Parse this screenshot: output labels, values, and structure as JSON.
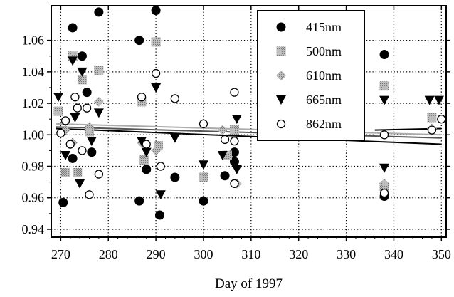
{
  "chart_data": {
    "type": "scatter",
    "title": "",
    "xlabel": "Day of 1997",
    "ylabel": "",
    "xlim": [
      268,
      351
    ],
    "ylim": [
      0.935,
      1.082
    ],
    "grid": true,
    "legend_position": "top-right",
    "xticks": [
      270,
      280,
      290,
      300,
      310,
      320,
      330,
      340,
      350
    ],
    "yticks": [
      0.94,
      0.96,
      0.98,
      1.0,
      1.02,
      1.04,
      1.06
    ],
    "xtick_labels": [
      "270",
      "280",
      "290",
      "300",
      "310",
      "320",
      "330",
      "340",
      "350"
    ],
    "ytick_labels": [
      "0.94",
      "0.96",
      "0.98",
      "1.00",
      "1.02",
      "1.04",
      "1.06"
    ],
    "series": [
      {
        "name": "415nm",
        "marker": "filled-circle",
        "color": "#000000",
        "points": [
          [
            270.5,
            0.957
          ],
          [
            272.5,
            1.068
          ],
          [
            272.5,
            0.985
          ],
          [
            274.5,
            1.05
          ],
          [
            275.5,
            1.027
          ],
          [
            276.5,
            0.989
          ],
          [
            278,
            1.078
          ],
          [
            286.5,
            1.06
          ],
          [
            286.5,
            0.958
          ],
          [
            288,
            0.978
          ],
          [
            290,
            1.079
          ],
          [
            290.8,
            0.949
          ],
          [
            294,
            0.973
          ],
          [
            300,
            0.958
          ],
          [
            304.5,
            0.974
          ],
          [
            306.5,
            0.989
          ],
          [
            306.5,
            0.983
          ],
          [
            338,
            1.051
          ],
          [
            338,
            0.961
          ]
        ]
      },
      {
        "name": "500nm",
        "marker": "gray-square",
        "color": "#999999",
        "points": [
          [
            269.5,
            1.015
          ],
          [
            271,
            0.976
          ],
          [
            272.5,
            1.05
          ],
          [
            273.5,
            0.976
          ],
          [
            274.5,
            1.035
          ],
          [
            276,
            1.002
          ],
          [
            278,
            1.041
          ],
          [
            287,
            1.021
          ],
          [
            287.5,
            0.984
          ],
          [
            290,
            1.059
          ],
          [
            290.5,
            0.993
          ],
          [
            300,
            0.973
          ],
          [
            305,
            0.987
          ],
          [
            306.5,
            1.003
          ],
          [
            338,
            1.031
          ],
          [
            338,
            0.967
          ],
          [
            348,
            1.011
          ]
        ]
      },
      {
        "name": "610nm",
        "marker": "gray-diamond",
        "color": "#bbbbbb",
        "points": [
          [
            271,
            1.003
          ],
          [
            272.5,
            0.995
          ],
          [
            276,
            1.005
          ],
          [
            278,
            1.021
          ],
          [
            287,
            0.995
          ],
          [
            290,
            0.99
          ],
          [
            304,
            1.003
          ],
          [
            307,
            0.969
          ],
          [
            338,
            0.969
          ],
          [
            348,
            1.004
          ]
        ]
      },
      {
        "name": "665nm",
        "marker": "filled-triangle-down",
        "color": "#000000",
        "points": [
          [
            269.5,
            1.024
          ],
          [
            271,
            0.987
          ],
          [
            272.5,
            1.047
          ],
          [
            273,
            1.011
          ],
          [
            274,
            0.969
          ],
          [
            274.5,
            1.04
          ],
          [
            276.5,
            0.996
          ],
          [
            278,
            1.014
          ],
          [
            287,
            0.996
          ],
          [
            288,
            0.989
          ],
          [
            290,
            1.03
          ],
          [
            291,
            0.962
          ],
          [
            294,
            0.998
          ],
          [
            300,
            0.981
          ],
          [
            304,
            0.987
          ],
          [
            307,
            1.01
          ],
          [
            307,
            0.978
          ],
          [
            338,
            1.022
          ],
          [
            338,
            0.979
          ],
          [
            347.5,
            1.022
          ],
          [
            349.5,
            1.022
          ]
        ]
      },
      {
        "name": "862nm",
        "marker": "open-circle",
        "color": "#000000",
        "points": [
          [
            270,
            1.001
          ],
          [
            271,
            1.009
          ],
          [
            272,
            0.994
          ],
          [
            273,
            1.024
          ],
          [
            273.5,
            1.017
          ],
          [
            274.5,
            0.99
          ],
          [
            275.5,
            1.017
          ],
          [
            276,
            0.962
          ],
          [
            278,
            0.975
          ],
          [
            287,
            1.024
          ],
          [
            288,
            0.994
          ],
          [
            290,
            1.039
          ],
          [
            291,
            0.98
          ],
          [
            294,
            1.023
          ],
          [
            300,
            1.007
          ],
          [
            304.5,
            0.997
          ],
          [
            306.5,
            1.027
          ],
          [
            306.5,
            0.996
          ],
          [
            306.5,
            0.969
          ],
          [
            338,
            1.0
          ],
          [
            338,
            0.963
          ],
          [
            348,
            1.003
          ],
          [
            350,
            1.01
          ]
        ]
      }
    ],
    "trend_lines": [
      {
        "color": "#000000",
        "points": [
          [
            269,
            1.004
          ],
          [
            350,
            0.994
          ]
        ]
      },
      {
        "color": "#555555",
        "points": [
          [
            269,
            1.005
          ],
          [
            350,
            0.998
          ]
        ]
      },
      {
        "color": "#aaaaaa",
        "points": [
          [
            269,
            1.007
          ],
          [
            350,
            1.0
          ]
        ]
      },
      {
        "color": "#000000",
        "points": [
          [
            336,
            1.003
          ],
          [
            350,
            1.004
          ]
        ]
      }
    ]
  }
}
